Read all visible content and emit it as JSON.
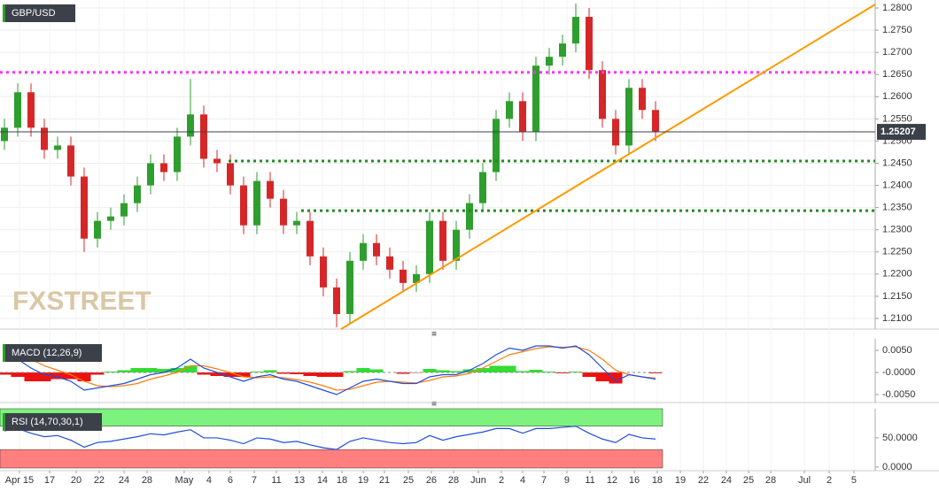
{
  "chart_data": [
    {
      "type": "candlestick",
      "title": "GBP/USD",
      "watermark": "FXSTREET",
      "x": [
        0,
        1,
        2,
        3,
        4,
        5,
        6,
        7,
        8,
        9,
        10,
        11,
        12,
        13,
        14,
        15,
        16,
        17,
        18,
        19,
        20,
        21,
        22,
        23,
        24,
        25,
        26,
        27,
        28,
        29,
        30,
        31,
        32,
        33,
        34,
        35,
        36,
        37,
        38,
        39,
        40,
        41,
        42,
        43,
        44,
        45,
        46,
        47,
        48,
        49
      ],
      "open": [
        1.25,
        1.253,
        1.261,
        1.253,
        1.248,
        1.249,
        1.242,
        1.228,
        1.232,
        1.233,
        1.236,
        1.24,
        1.245,
        1.243,
        1.251,
        1.256,
        1.246,
        1.245,
        1.24,
        1.231,
        1.241,
        1.237,
        1.231,
        1.232,
        1.224,
        1.217,
        1.211,
        1.223,
        1.227,
        1.224,
        1.221,
        1.218,
        1.22,
        1.232,
        1.223,
        1.23,
        1.236,
        1.243,
        1.255,
        1.259,
        1.252,
        1.267,
        1.269,
        1.272,
        1.278,
        1.266,
        1.255,
        1.249,
        1.262,
        1.257
      ],
      "high": [
        1.255,
        1.263,
        1.263,
        1.255,
        1.251,
        1.251,
        1.244,
        1.234,
        1.235,
        1.238,
        1.242,
        1.247,
        1.247,
        1.253,
        1.264,
        1.258,
        1.248,
        1.247,
        1.242,
        1.243,
        1.243,
        1.239,
        1.234,
        1.234,
        1.226,
        1.219,
        1.225,
        1.229,
        1.229,
        1.226,
        1.223,
        1.222,
        1.234,
        1.234,
        1.232,
        1.238,
        1.245,
        1.257,
        1.261,
        1.261,
        1.269,
        1.271,
        1.274,
        1.281,
        1.28,
        1.268,
        1.257,
        1.264,
        1.264,
        1.259
      ],
      "low": [
        1.248,
        1.251,
        1.251,
        1.246,
        1.246,
        1.24,
        1.225,
        1.226,
        1.23,
        1.231,
        1.234,
        1.238,
        1.241,
        1.241,
        1.249,
        1.244,
        1.243,
        1.238,
        1.229,
        1.229,
        1.235,
        1.229,
        1.229,
        1.222,
        1.215,
        1.208,
        1.209,
        1.221,
        1.222,
        1.219,
        1.216,
        1.216,
        1.218,
        1.221,
        1.221,
        1.228,
        1.234,
        1.241,
        1.253,
        1.25,
        1.25,
        1.265,
        1.267,
        1.27,
        1.264,
        1.253,
        1.247,
        1.247,
        1.255,
        1.25
      ],
      "close": [
        1.253,
        1.261,
        1.253,
        1.248,
        1.249,
        1.242,
        1.228,
        1.232,
        1.233,
        1.236,
        1.24,
        1.245,
        1.243,
        1.251,
        1.256,
        1.246,
        1.245,
        1.24,
        1.231,
        1.241,
        1.237,
        1.231,
        1.232,
        1.224,
        1.217,
        1.211,
        1.223,
        1.227,
        1.224,
        1.221,
        1.218,
        1.22,
        1.232,
        1.223,
        1.23,
        1.236,
        1.243,
        1.255,
        1.259,
        1.252,
        1.267,
        1.269,
        1.272,
        1.278,
        1.266,
        1.255,
        1.249,
        1.262,
        1.257,
        1.2521
      ],
      "up_color": "#2e9e2e",
      "down_color": "#d62728",
      "xlim": [
        -0.3333,
        65.5333
      ],
      "xticks": [
        {
          "value": 1.13,
          "label": "Apr 15"
        },
        {
          "value": 3.4,
          "label": "17"
        },
        {
          "value": 5.4,
          "label": "20"
        },
        {
          "value": 7.13,
          "label": "22"
        },
        {
          "value": 9,
          "label": "24"
        },
        {
          "value": 10.73,
          "label": "28"
        },
        {
          "value": 13.53,
          "label": "May"
        },
        {
          "value": 15.4,
          "label": "4"
        },
        {
          "value": 17,
          "label": "6"
        },
        {
          "value": 18.8,
          "label": "7"
        },
        {
          "value": 20.47,
          "label": "11"
        },
        {
          "value": 22.2,
          "label": "13"
        },
        {
          "value": 23.93,
          "label": "14"
        },
        {
          "value": 25.4,
          "label": "18"
        },
        {
          "value": 27,
          "label": "19"
        },
        {
          "value": 28.6,
          "label": "21"
        },
        {
          "value": 30.4,
          "label": "25"
        },
        {
          "value": 32.13,
          "label": "26"
        },
        {
          "value": 33.8,
          "label": "28"
        },
        {
          "value": 35.67,
          "label": "Jun"
        },
        {
          "value": 37.4,
          "label": "2"
        },
        {
          "value": 39,
          "label": "4"
        },
        {
          "value": 40.6,
          "label": "7"
        },
        {
          "value": 42.33,
          "label": "9"
        },
        {
          "value": 44.07,
          "label": "11"
        },
        {
          "value": 45.73,
          "label": "12"
        },
        {
          "value": 47.4,
          "label": "16"
        },
        {
          "value": 49.13,
          "label": "18"
        },
        {
          "value": 50.87,
          "label": "19"
        },
        {
          "value": 52.6,
          "label": "22"
        },
        {
          "value": 54.33,
          "label": "24"
        },
        {
          "value": 56,
          "label": "25"
        },
        {
          "value": 57.67,
          "label": "28"
        },
        {
          "value": 60.2,
          "label": "Jul"
        },
        {
          "value": 62.07,
          "label": "2"
        },
        {
          "value": 63.93,
          "label": "5"
        }
      ],
      "ylim": [
        1.2076,
        1.2818
      ],
      "yticks": [
        {
          "value": 1.21,
          "label": "1.2100"
        },
        {
          "value": 1.215,
          "label": "1.2150"
        },
        {
          "value": 1.22,
          "label": "1.2200"
        },
        {
          "value": 1.225,
          "label": "1.2250"
        },
        {
          "value": 1.23,
          "label": "1.2300"
        },
        {
          "value": 1.235,
          "label": "1.2350"
        },
        {
          "value": 1.24,
          "label": "1.2400"
        },
        {
          "value": 1.245,
          "label": "1.2450"
        },
        {
          "value": 1.25,
          "label": "1.2500"
        },
        {
          "value": 1.255,
          "label": "1.2550"
        },
        {
          "value": 1.26,
          "label": "1.2600"
        },
        {
          "value": 1.265,
          "label": "1.2650"
        },
        {
          "value": 1.27,
          "label": "1.2700"
        },
        {
          "value": 1.275,
          "label": "1.2750"
        },
        {
          "value": 1.28,
          "label": "1.2800"
        }
      ],
      "grid": true,
      "levels": [
        {
          "value": 1.2655,
          "color": "#ff33ff",
          "x_start": -0.3333
        },
        {
          "value": 1.2455,
          "color": "#228b22",
          "x_start": 16.87
        },
        {
          "value": 1.2343,
          "color": "#228b22",
          "x_start": 22.33
        }
      ],
      "trendline": {
        "x": [
          25.33,
          65.53
        ],
        "y": [
          1.2076,
          1.2808
        ],
        "color": "#ff9900"
      },
      "last_price": 1.25207
    },
    {
      "type": "macd",
      "title": "MACD (12,26,9)",
      "macd": [
        0.004,
        0.003,
        0.001,
        -0.0005,
        -0.001,
        -0.002,
        -0.004,
        -0.0035,
        -0.003,
        -0.0025,
        -0.0015,
        -0.0005,
        0.0,
        0.001,
        0.003,
        0.001,
        0.0,
        -0.001,
        -0.002,
        -0.001,
        -0.0005,
        -0.0015,
        -0.002,
        -0.003,
        -0.004,
        -0.005,
        -0.0035,
        -0.002,
        -0.0015,
        -0.002,
        -0.0025,
        -0.0025,
        -0.001,
        -0.0005,
        -0.0005,
        0.0005,
        0.002,
        0.004,
        0.0055,
        0.005,
        0.006,
        0.006,
        0.0055,
        0.006,
        0.004,
        0.001,
        -0.002,
        -0.0005,
        -0.001,
        -0.0015
      ],
      "signal": [
        0.0045,
        0.004,
        0.003,
        0.0015,
        0.0005,
        -0.0005,
        -0.002,
        -0.003,
        -0.0032,
        -0.003,
        -0.0025,
        -0.0015,
        -0.0008,
        0.0,
        0.0015,
        0.0015,
        0.0008,
        0.0,
        -0.001,
        -0.0012,
        -0.001,
        -0.0012,
        -0.0016,
        -0.0022,
        -0.003,
        -0.004,
        -0.0038,
        -0.003,
        -0.0022,
        -0.002,
        -0.0022,
        -0.0024,
        -0.0018,
        -0.001,
        -0.0008,
        -0.0002,
        0.001,
        0.0025,
        0.004,
        0.0047,
        0.0054,
        0.0058,
        0.0057,
        0.0058,
        0.005,
        0.003,
        0.0005,
        -0.0005,
        -0.001,
        -0.0013
      ],
      "histogram": [
        -0.0005,
        -0.001,
        -0.002,
        -0.002,
        -0.0015,
        -0.0015,
        -0.002,
        -0.0005,
        0.0002,
        0.0005,
        0.001,
        0.001,
        0.0008,
        0.001,
        0.0015,
        -0.0005,
        -0.0008,
        -0.001,
        -0.001,
        0.0002,
        0.0005,
        -0.0003,
        -0.0004,
        -0.0008,
        -0.001,
        -0.001,
        0.0003,
        0.001,
        0.0007,
        0.0,
        -0.0003,
        -0.0001,
        0.0008,
        0.0005,
        0.0003,
        0.0007,
        0.001,
        0.0015,
        0.0015,
        0.0003,
        0.0006,
        0.0002,
        -0.0002,
        0.0002,
        -0.001,
        -0.002,
        -0.0025,
        0.0,
        0.0,
        -0.0002
      ],
      "macd_color": "#1f4fd8",
      "signal_color": "#ff7f0e",
      "up_color": "#33dd33",
      "down_color": "#ee1111",
      "ylim": [
        -0.0068,
        0.0076
      ],
      "yticks": [
        {
          "value": 0.005,
          "label": "0.0050"
        },
        {
          "value": 0,
          "label": "-0.0000"
        },
        {
          "value": -0.005,
          "label": "-0.0050"
        }
      ]
    },
    {
      "type": "rsi",
      "title": "RSI (14,70,30,1)",
      "values": [
        62,
        66,
        58,
        52,
        54,
        46,
        34,
        42,
        44,
        48,
        52,
        57,
        55,
        60,
        64,
        50,
        50,
        46,
        40,
        50,
        48,
        42,
        44,
        38,
        33,
        30,
        44,
        50,
        46,
        42,
        40,
        42,
        54,
        46,
        52,
        56,
        60,
        66,
        66,
        58,
        66,
        66,
        68,
        70,
        58,
        48,
        42,
        56,
        50,
        48
      ],
      "color": "#1f4fd8",
      "overbought": 70,
      "oversold": 30,
      "overbought_color": "#7ef27e",
      "oversold_color": "#ff7f7f",
      "ylim": [
        -6.25,
        100
      ],
      "yticks": [
        {
          "value": 50,
          "label": "50.0000"
        },
        {
          "value": 0,
          "label": "0.0000"
        }
      ]
    }
  ]
}
